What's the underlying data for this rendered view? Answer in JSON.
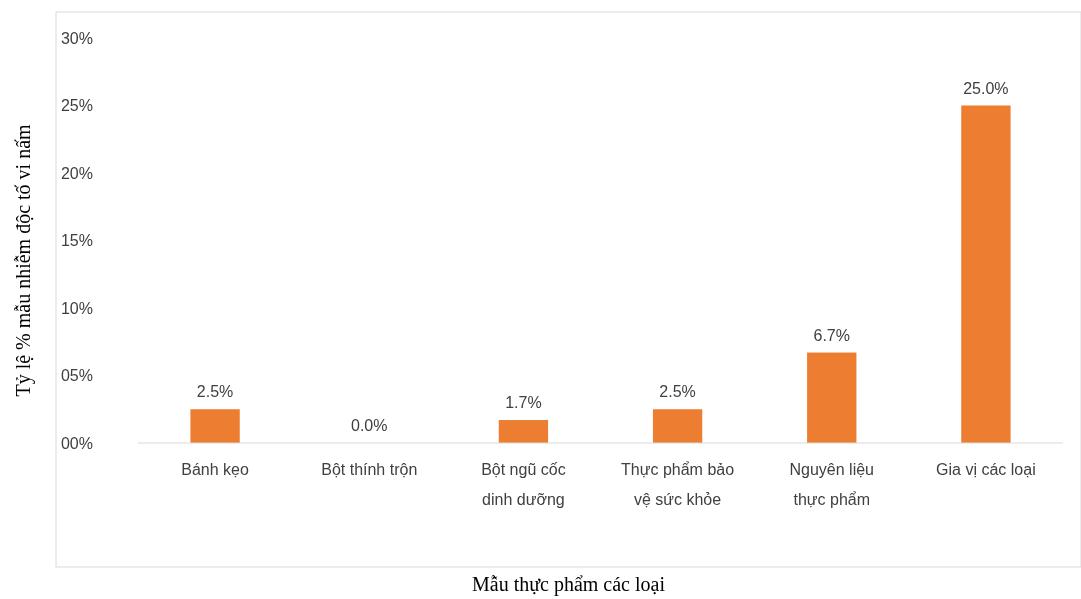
{
  "chart_data": {
    "type": "bar",
    "xlabel": "Mẫu thực phẩm các loại",
    "ylabel": "Tỷ lệ % mẫu nhiễm độc tố vi nấm",
    "categories": [
      "Bánh kẹo",
      "Bột thính trộn",
      "Bột ngũ cốc dinh dưỡng",
      "Thực phẩm bảo vệ sức khỏe",
      "Nguyên liệu thực phẩm",
      "Gia vị các loại"
    ],
    "values": [
      2.5,
      0,
      1.7,
      2.5,
      6.7,
      25
    ],
    "value_labels": [
      "2.5%",
      "0.0%",
      "1.7%",
      "2.5%",
      "6.7%",
      "25.0%"
    ],
    "color": "#ed7d31",
    "ylim": [
      0,
      30
    ],
    "yticks": [
      {
        "value": 0,
        "label": "00%"
      },
      {
        "value": 5,
        "label": "05%"
      },
      {
        "value": 10,
        "label": "10%"
      },
      {
        "value": 15,
        "label": "15%"
      },
      {
        "value": 20,
        "label": "20%"
      },
      {
        "value": 25,
        "label": "25%"
      },
      {
        "value": 30,
        "label": "30%"
      }
    ],
    "grid": false
  }
}
